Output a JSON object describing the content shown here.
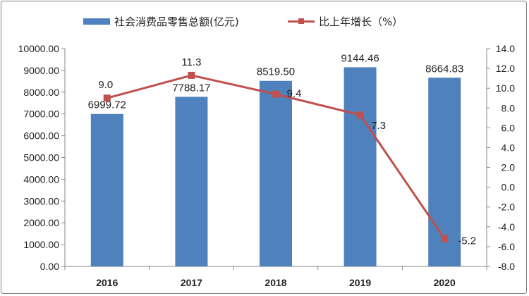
{
  "chart_data": {
    "type": "bar+line",
    "categories": [
      "2016",
      "2017",
      "2018",
      "2019",
      "2020"
    ],
    "series": [
      {
        "name": "社会消费品零售总额(亿元)",
        "type": "bar",
        "axis": "left",
        "color": "#4f81bd",
        "values": [
          6999.72,
          7788.17,
          8519.5,
          9144.46,
          8664.83
        ],
        "labels": [
          "6999.72",
          "7788.17",
          "8519.50",
          "9144.46",
          "8664.83"
        ]
      },
      {
        "name": "比上年增长（%）",
        "type": "line",
        "axis": "right",
        "color": "#c0504d",
        "values": [
          9.0,
          11.3,
          9.4,
          7.3,
          -5.2
        ],
        "labels": [
          "9.0",
          "11.3",
          "9.4",
          "7.3",
          "-5.2"
        ]
      }
    ],
    "y_left": {
      "range": [
        0,
        10000
      ],
      "ticks": [
        "0.00",
        "1000.00",
        "2000.00",
        "3000.00",
        "4000.00",
        "5000.00",
        "6000.00",
        "7000.00",
        "8000.00",
        "9000.00",
        "10000.00"
      ]
    },
    "y_right": {
      "range": [
        -8,
        14
      ],
      "ticks": [
        "-8.0",
        "-6.0",
        "-4.0",
        "-2.0",
        "0.0",
        "2.0",
        "4.0",
        "6.0",
        "8.0",
        "10.0",
        "12.0",
        "14.0"
      ]
    },
    "grid": false,
    "legend": "top"
  }
}
